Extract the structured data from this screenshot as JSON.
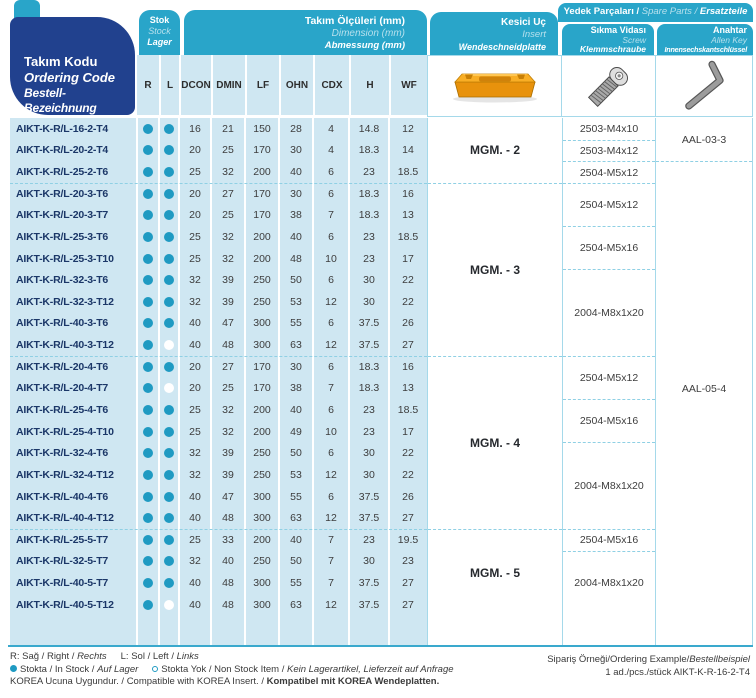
{
  "colors": {
    "navy": "#21418e",
    "cyan": "#29a5c9",
    "dot_cyan": "#1f9ac2",
    "row_bg": "#cfe7f2",
    "insert_orange": "#f2a71b"
  },
  "header": {
    "tool_code": {
      "tr": "Takım Kodu",
      "en": "Ordering Code",
      "de": "Bestell-Bezeichnung"
    },
    "stock": {
      "tr": "Stok",
      "en": "Stock",
      "de": "Lager"
    },
    "dimensions": {
      "tr": "Takım Ölçüleri (mm)",
      "en": "Dimension (mm)",
      "de": "Abmessung (mm)"
    },
    "insert": {
      "tr": "Kesici Uç",
      "en": "Insert",
      "de": "Wendeschneidplatte"
    },
    "spare_parts": {
      "tr": "Yedek Parçaları / ",
      "en": "Spare Parts / ",
      "de": "Ersatzteile"
    },
    "screw": {
      "tr": "Sıkma Vidası",
      "en": "Screw",
      "de": "Klemmschraube"
    },
    "allen_key": {
      "tr": "Anahtar",
      "en": "Allen Key",
      "de": "Innensechskantschlüssel"
    }
  },
  "table": {
    "columns": [
      "R",
      "L",
      "DCON",
      "DMIN",
      "LF",
      "OHN",
      "CDX",
      "H",
      "WF"
    ],
    "rows": [
      {
        "code": "AIKT-K-R/L-16-2-T4",
        "r": "in",
        "l": "in",
        "values": [
          "16",
          "21",
          "150",
          "28",
          "4",
          "14.8",
          "12"
        ]
      },
      {
        "code": "AIKT-K-R/L-20-2-T4",
        "r": "in",
        "l": "in",
        "values": [
          "20",
          "25",
          "170",
          "30",
          "4",
          "18.3",
          "14"
        ]
      },
      {
        "code": "AIKT-K-R/L-25-2-T6",
        "r": "in",
        "l": "in",
        "values": [
          "25",
          "32",
          "200",
          "40",
          "6",
          "23",
          "18.5"
        ]
      },
      {
        "code": "AIKT-K-R/L-20-3-T6",
        "r": "in",
        "l": "in",
        "values": [
          "20",
          "27",
          "170",
          "30",
          "6",
          "18.3",
          "16"
        ]
      },
      {
        "code": "AIKT-K-R/L-20-3-T7",
        "r": "in",
        "l": "in",
        "values": [
          "20",
          "25",
          "170",
          "38",
          "7",
          "18.3",
          "13"
        ]
      },
      {
        "code": "AIKT-K-R/L-25-3-T6",
        "r": "in",
        "l": "in",
        "values": [
          "25",
          "32",
          "200",
          "40",
          "6",
          "23",
          "18.5"
        ]
      },
      {
        "code": "AIKT-K-R/L-25-3-T10",
        "r": "in",
        "l": "in",
        "values": [
          "25",
          "32",
          "200",
          "48",
          "10",
          "23",
          "17"
        ]
      },
      {
        "code": "AIKT-K-R/L-32-3-T6",
        "r": "in",
        "l": "in",
        "values": [
          "32",
          "39",
          "250",
          "50",
          "6",
          "30",
          "22"
        ]
      },
      {
        "code": "AIKT-K-R/L-32-3-T12",
        "r": "in",
        "l": "in",
        "values": [
          "32",
          "39",
          "250",
          "53",
          "12",
          "30",
          "22"
        ]
      },
      {
        "code": "AIKT-K-R/L-40-3-T6",
        "r": "in",
        "l": "in",
        "values": [
          "40",
          "47",
          "300",
          "55",
          "6",
          "37.5",
          "26"
        ]
      },
      {
        "code": "AIKT-K-R/L-40-3-T12",
        "r": "in",
        "l": "out",
        "values": [
          "40",
          "48",
          "300",
          "63",
          "12",
          "37.5",
          "27"
        ]
      },
      {
        "code": "AIKT-K-R/L-20-4-T6",
        "r": "in",
        "l": "in",
        "values": [
          "20",
          "27",
          "170",
          "30",
          "6",
          "18.3",
          "16"
        ]
      },
      {
        "code": "AIKT-K-R/L-20-4-T7",
        "r": "in",
        "l": "out",
        "values": [
          "20",
          "25",
          "170",
          "38",
          "7",
          "18.3",
          "13"
        ]
      },
      {
        "code": "AIKT-K-R/L-25-4-T6",
        "r": "in",
        "l": "in",
        "values": [
          "25",
          "32",
          "200",
          "40",
          "6",
          "23",
          "18.5"
        ]
      },
      {
        "code": "AIKT-K-R/L-25-4-T10",
        "r": "in",
        "l": "in",
        "values": [
          "25",
          "32",
          "200",
          "49",
          "10",
          "23",
          "17"
        ]
      },
      {
        "code": "AIKT-K-R/L-32-4-T6",
        "r": "in",
        "l": "in",
        "values": [
          "32",
          "39",
          "250",
          "50",
          "6",
          "30",
          "22"
        ]
      },
      {
        "code": "AIKT-K-R/L-32-4-T12",
        "r": "in",
        "l": "in",
        "values": [
          "32",
          "39",
          "250",
          "53",
          "12",
          "30",
          "22"
        ]
      },
      {
        "code": "AIKT-K-R/L-40-4-T6",
        "r": "in",
        "l": "in",
        "values": [
          "40",
          "47",
          "300",
          "55",
          "6",
          "37.5",
          "26"
        ]
      },
      {
        "code": "AIKT-K-R/L-40-4-T12",
        "r": "in",
        "l": "in",
        "values": [
          "40",
          "48",
          "300",
          "63",
          "12",
          "37.5",
          "27"
        ]
      },
      {
        "code": "AIKT-K-R/L-25-5-T7",
        "r": "in",
        "l": "in",
        "values": [
          "25",
          "33",
          "200",
          "40",
          "7",
          "23",
          "19.5"
        ]
      },
      {
        "code": "AIKT-K-R/L-32-5-T7",
        "r": "in",
        "l": "in",
        "values": [
          "32",
          "40",
          "250",
          "50",
          "7",
          "30",
          "23"
        ]
      },
      {
        "code": "AIKT-K-R/L-40-5-T7",
        "r": "in",
        "l": "in",
        "values": [
          "40",
          "48",
          "300",
          "55",
          "7",
          "37.5",
          "27"
        ]
      },
      {
        "code": "AIKT-K-R/L-40-5-T12",
        "r": "in",
        "l": "out",
        "values": [
          "40",
          "48",
          "300",
          "63",
          "12",
          "37.5",
          "27"
        ]
      }
    ],
    "insert_groups": [
      {
        "label": "MGM. - 2",
        "rows": 3
      },
      {
        "label": "MGM. - 3",
        "rows": 8
      },
      {
        "label": "MGM. - 4",
        "rows": 8
      },
      {
        "label": "MGM. - 5",
        "rows": 4
      }
    ],
    "screw_groups": [
      {
        "label": "2503-M4x10",
        "rows": 1
      },
      {
        "label": "2503-M4x12",
        "rows": 1
      },
      {
        "label": "2504-M5x12",
        "rows": 1
      },
      {
        "label": "2504-M5x12",
        "rows": 2
      },
      {
        "label": "2504-M5x16",
        "rows": 2
      },
      {
        "label": "2004-M8x1x20",
        "rows": 4
      },
      {
        "label": "2504-M5x12",
        "rows": 2
      },
      {
        "label": "2504-M5x16",
        "rows": 2
      },
      {
        "label": "2004-M8x1x20",
        "rows": 4
      },
      {
        "label": "2504-M5x16",
        "rows": 1
      },
      {
        "label": "2004-M8x1x20",
        "rows": 3
      }
    ],
    "key_groups": [
      {
        "label": "AAL-03-3",
        "rows": 2
      },
      {
        "label": "AAL-05-4",
        "rows": 21
      }
    ]
  },
  "footer": {
    "rl_note": {
      "part1": "R: Sağ / Right /",
      "part1_it": "Rechts",
      "part2": "L: Sol / Left /",
      "part2_it": "Links"
    },
    "stock_note": {
      "in_label": "Stokta / In Stock /",
      "in_it": "Auf Lager",
      "out_label": "Stokta Yok / Non Stock Item /",
      "out_it": "Kein Lagerartikel, Lieferzeit auf Anfrage"
    },
    "korea_note": {
      "main": "KOREA Ucuna Uygundur. / Compatible with KOREA Insert. /",
      "de": "Kompatibel mit KOREA Wendeplatten."
    },
    "ordering_example": {
      "label": "Sipariş Örneği/Ordering Example/",
      "label_it": "Bestellbeispiel",
      "value": "1 ad./pcs./stück AIKT-K-R-16-2-T4"
    }
  }
}
